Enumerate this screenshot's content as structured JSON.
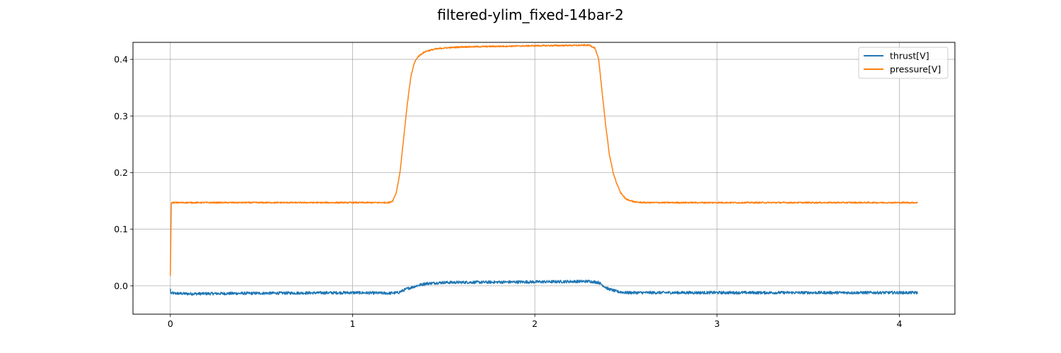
{
  "chart_data": {
    "type": "line",
    "title": "filtered-ylim_fixed-14bar-2",
    "xlabel": "",
    "ylabel": "",
    "xlim": [
      -0.205,
      4.305
    ],
    "ylim": [
      -0.05,
      0.43
    ],
    "x_ticks": [
      0,
      1,
      2,
      3,
      4
    ],
    "x_tick_labels": [
      "0",
      "1",
      "2",
      "3",
      "4"
    ],
    "y_ticks": [
      0.0,
      0.1,
      0.2,
      0.3,
      0.4
    ],
    "y_tick_labels": [
      "0.0",
      "0.1",
      "0.2",
      "0.3",
      "0.4"
    ],
    "grid": true,
    "legend_position": "top-right",
    "series": [
      {
        "name": "thrust[V]",
        "color": "#1f77b4",
        "noise": 0.0025,
        "x": [
          0,
          0.001,
          0.1,
          0.5,
          1.0,
          1.2,
          1.25,
          1.3,
          1.35,
          1.4,
          1.5,
          2.0,
          2.3,
          2.35,
          2.4,
          2.45,
          2.5,
          3.0,
          3.5,
          4.1
        ],
        "y": [
          -0.005,
          -0.013,
          -0.014,
          -0.013,
          -0.012,
          -0.013,
          -0.012,
          -0.005,
          0.0,
          0.004,
          0.006,
          0.007,
          0.008,
          0.006,
          -0.005,
          -0.01,
          -0.012,
          -0.012,
          -0.012,
          -0.012
        ]
      },
      {
        "name": "pressure[V]",
        "color": "#ff7f0e",
        "noise": 0.0012,
        "x": [
          0,
          0.005,
          0.01,
          1.0,
          1.2,
          1.22,
          1.24,
          1.26,
          1.28,
          1.3,
          1.32,
          1.34,
          1.36,
          1.38,
          1.4,
          1.45,
          1.5,
          1.6,
          2.0,
          2.3,
          2.33,
          2.35,
          2.37,
          2.39,
          2.41,
          2.43,
          2.45,
          2.47,
          2.5,
          2.55,
          2.6,
          3.0,
          4.1
        ],
        "y": [
          0.018,
          0.145,
          0.147,
          0.147,
          0.147,
          0.15,
          0.165,
          0.2,
          0.26,
          0.32,
          0.37,
          0.395,
          0.405,
          0.41,
          0.414,
          0.418,
          0.42,
          0.422,
          0.424,
          0.425,
          0.42,
          0.4,
          0.34,
          0.28,
          0.23,
          0.2,
          0.18,
          0.165,
          0.153,
          0.148,
          0.147,
          0.147,
          0.147
        ]
      }
    ]
  }
}
